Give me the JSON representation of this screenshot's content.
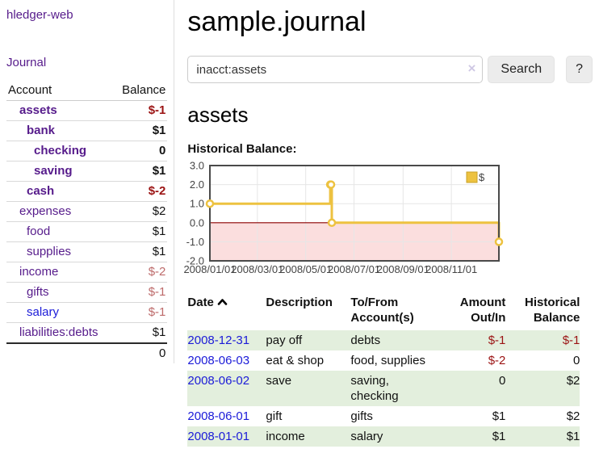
{
  "app": {
    "brand": "hledger-web"
  },
  "sidebar": {
    "journal_link": "Journal",
    "accounts_table": {
      "account_header": "Account",
      "balance_header": "Balance",
      "rows": [
        {
          "account": "assets",
          "balance": "$-1",
          "depth": 1,
          "in_current_account": true
        },
        {
          "account": "bank",
          "balance": "$1",
          "depth": 2,
          "in_current_account": true
        },
        {
          "account": "checking",
          "balance": "0",
          "depth": 3,
          "in_current_account": true
        },
        {
          "account": "saving",
          "balance": "$1",
          "depth": 3,
          "in_current_account": true
        },
        {
          "account": "cash",
          "balance": "$-2",
          "depth": 2,
          "in_current_account": true
        },
        {
          "account": "expenses",
          "balance": "$2",
          "depth": 1,
          "in_current_account": false
        },
        {
          "account": "food",
          "balance": "$1",
          "depth": 2,
          "in_current_account": false
        },
        {
          "account": "supplies",
          "balance": "$1",
          "depth": 2,
          "in_current_account": false
        },
        {
          "account": "income",
          "balance": "$-2",
          "depth": 1,
          "in_current_account": false
        },
        {
          "account": "gifts",
          "balance": "$-1",
          "depth": 2,
          "in_current_account": false
        },
        {
          "account": "salary",
          "balance": "$-1",
          "depth": 2,
          "in_current_account": false
        },
        {
          "account": "liabilities:debts",
          "balance": "$1",
          "depth": 1,
          "in_current_account": false
        }
      ],
      "total": "0"
    }
  },
  "main": {
    "title": "sample.journal",
    "search": {
      "value": "inacct:assets",
      "clear_label": "×",
      "search_button": "Search",
      "help_button": "?"
    },
    "account_heading": "assets",
    "chart_title": "Historical Balance:"
  },
  "chart_data": {
    "type": "line",
    "step": true,
    "title": "Historical Balance",
    "series": [
      {
        "name": "$",
        "color": "#EDC240",
        "points": [
          [
            "2008-01-01",
            1
          ],
          [
            "2008-06-01",
            2
          ],
          [
            "2008-06-02",
            2
          ],
          [
            "2008-06-03",
            0
          ],
          [
            "2008-12-31",
            -1
          ]
        ]
      }
    ],
    "xlim": [
      "2008-01-01",
      "2008-12-31"
    ],
    "ylim": [
      -2,
      3
    ],
    "y_ticks": [
      3,
      2,
      1,
      0,
      -1,
      -2
    ],
    "y_tick_labels": [
      "3.0",
      "2.0",
      "1.0",
      "0.0",
      "-1.0",
      "-2.0"
    ],
    "x_tick_dates": [
      "2008-01-01",
      "2008-03-01",
      "2008-05-01",
      "2008-07-01",
      "2008-09-01",
      "2008-11-01"
    ],
    "x_tick_labels": [
      "2008/01/01",
      "2008/03/01",
      "2008/05/01",
      "2008/07/01",
      "2008/09/01",
      "2008/11/01"
    ],
    "legend": {
      "entries": [
        "$"
      ],
      "position": "top-right"
    },
    "grid": true,
    "colors": {
      "negative_region": "#FBDEDE",
      "zero_line": "#8B0000",
      "gridline": "#E6E6E6",
      "border": "#4A4A4A",
      "tick_label": "#444444",
      "legend_swatch_border": "#C9A227"
    }
  },
  "register": {
    "headers": {
      "date": "Date",
      "sort_direction": "ascending",
      "description": "Description",
      "tofrom_line1": "To/From",
      "tofrom_line2": "Account(s)",
      "amount_line1": "Amount",
      "amount_line2": "Out/In",
      "balance_line1": "Historical",
      "balance_line2": "Balance"
    },
    "rows": [
      {
        "date": "2008-12-31",
        "description": "pay off",
        "accounts": "debts",
        "amount": "$-1",
        "balance": "$-1"
      },
      {
        "date": "2008-06-03",
        "description": "eat & shop",
        "accounts": "food, supplies",
        "amount": "$-2",
        "balance": "0"
      },
      {
        "date": "2008-06-02",
        "description": "save",
        "accounts": "saving,\nchecking",
        "amount": "0",
        "balance": "$2"
      },
      {
        "date": "2008-06-01",
        "description": "gift",
        "accounts": "gifts",
        "amount": "$1",
        "balance": "$2"
      },
      {
        "date": "2008-01-01",
        "description": "income",
        "accounts": "salary",
        "amount": "$1",
        "balance": "$1"
      }
    ]
  },
  "colors": {
    "link_purple": "#561B8B",
    "link_blue": "#1B1BD8",
    "negative_strong": "#9B1313",
    "negative_soft": "#BD6A6A",
    "row_stripe_green": "#E3EFDD",
    "series_gold": "#EDC240"
  }
}
